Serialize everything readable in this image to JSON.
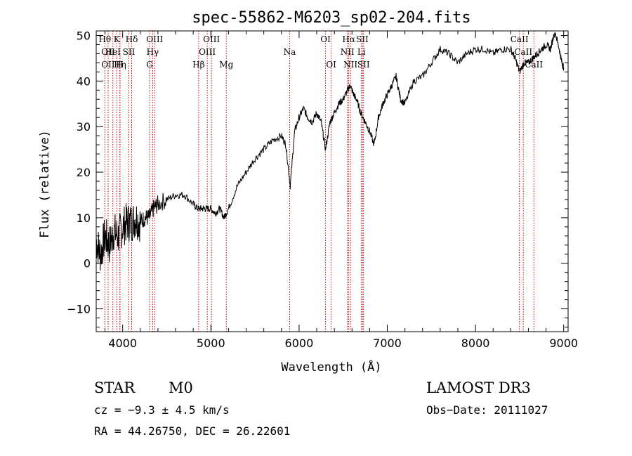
{
  "chart_data": {
    "type": "line",
    "title": "spec-55862-M6203_sp02-204.fits",
    "xlabel": "Wavelength (Å)",
    "ylabel": "Flux (relative)",
    "xlim": [
      3700,
      9050
    ],
    "ylim": [
      -15,
      51
    ],
    "x_ticks": [
      "4000",
      "5000",
      "6000",
      "7000",
      "8000",
      "9000"
    ],
    "x_tick_values": [
      4000,
      5000,
      6000,
      7000,
      8000,
      9000
    ],
    "y_ticks": [
      "−10",
      "0",
      "10",
      "20",
      "30",
      "40",
      "50"
    ],
    "y_tick_values": [
      -10,
      0,
      10,
      20,
      30,
      40,
      50
    ],
    "grid": false,
    "series": [
      {
        "name": "flux",
        "x": [
          3700,
          3750,
          3800,
          3850,
          3900,
          3950,
          4000,
          4050,
          4100,
          4150,
          4200,
          4250,
          4300,
          4350,
          4400,
          4500,
          4600,
          4700,
          4800,
          4850,
          4900,
          4950,
          5000,
          5050,
          5100,
          5150,
          5200,
          5300,
          5400,
          5500,
          5600,
          5700,
          5800,
          5850,
          5900,
          5950,
          6000,
          6050,
          6100,
          6150,
          6200,
          6250,
          6300,
          6350,
          6400,
          6450,
          6500,
          6550,
          6580,
          6620,
          6650,
          6700,
          6750,
          6800,
          6850,
          6900,
          6950,
          7000,
          7050,
          7100,
          7150,
          7200,
          7300,
          7400,
          7500,
          7600,
          7700,
          7800,
          7900,
          8000,
          8100,
          8200,
          8300,
          8400,
          8450,
          8500,
          8550,
          8600,
          8650,
          8700,
          8750,
          8800,
          8850,
          8900,
          8950,
          8980,
          9000
        ],
        "values": [
          5,
          2,
          6,
          4,
          7,
          6,
          8,
          9,
          9,
          10,
          9,
          10,
          10,
          12,
          13,
          14,
          15,
          15,
          13,
          12,
          12,
          12,
          12,
          11,
          12,
          10,
          12,
          17,
          20,
          23,
          25,
          27,
          28,
          26,
          17,
          29,
          32,
          34,
          32,
          31,
          33,
          31,
          25,
          31,
          33,
          35,
          36,
          38,
          39,
          37,
          36,
          33,
          31,
          29,
          26,
          32,
          35,
          37,
          39,
          41,
          36,
          35,
          40,
          41,
          44,
          47,
          46,
          44,
          46,
          47,
          47,
          46,
          47,
          47,
          45,
          42,
          44,
          44,
          45,
          46,
          47,
          48,
          47,
          51,
          47,
          44,
          43
        ]
      }
    ],
    "spectral_lines": [
      {
        "wavelength": 3798,
        "label": "Hθ",
        "row": 1
      },
      {
        "wavelength": 3835,
        "label": "OII",
        "row": 2
      },
      {
        "wavelength": 3835,
        "label": "OII",
        "row": 3
      },
      {
        "wavelength": 3889,
        "label": "HeI",
        "row": 2
      },
      {
        "wavelength": 3933,
        "label": "K",
        "row": 1
      },
      {
        "wavelength": 3970,
        "label": "Hη",
        "row": 3
      },
      {
        "wavelength": 4070,
        "label": "SII",
        "row": 2
      },
      {
        "wavelength": 3968,
        "label": "H",
        "row": 3
      },
      {
        "wavelength": 4102,
        "label": "Hδ",
        "row": 1
      },
      {
        "wavelength": 4340,
        "label": "Hγ",
        "row": 2
      },
      {
        "wavelength": 4363,
        "label": "OIII",
        "row": 1
      },
      {
        "wavelength": 4305,
        "label": "G",
        "row": 3
      },
      {
        "wavelength": 4861,
        "label": "Hβ",
        "row": 3
      },
      {
        "wavelength": 4959,
        "label": "OIII",
        "row": 2
      },
      {
        "wavelength": 5007,
        "label": "OIII",
        "row": 1
      },
      {
        "wavelength": 5175,
        "label": "Mg",
        "row": 3
      },
      {
        "wavelength": 5893,
        "label": "Na",
        "row": 2
      },
      {
        "wavelength": 6300,
        "label": "OI",
        "row": 1
      },
      {
        "wavelength": 6364,
        "label": "OI",
        "row": 3
      },
      {
        "wavelength": 6548,
        "label": "NII",
        "row": 2
      },
      {
        "wavelength": 6563,
        "label": "Hα",
        "row": 1
      },
      {
        "wavelength": 6583,
        "label": "NII",
        "row": 3
      },
      {
        "wavelength": 6708,
        "label": "Li",
        "row": 2
      },
      {
        "wavelength": 6717,
        "label": "SII",
        "row": 1
      },
      {
        "wavelength": 6731,
        "label": "SII",
        "row": 3
      },
      {
        "wavelength": 8498,
        "label": "CaII",
        "row": 1
      },
      {
        "wavelength": 8542,
        "label": "CaII",
        "row": 2
      },
      {
        "wavelength": 8662,
        "label": "CaII",
        "row": 3
      }
    ]
  },
  "info": {
    "object_type": "STAR",
    "subclass": "M0",
    "survey": "LAMOST DR3",
    "redshift": "cz = −9.3 ± 4.5 km/s",
    "obs_date": "Obs−Date: 20111027",
    "coords": "RA =  44.26750, DEC =  26.22601"
  },
  "colors": {
    "spectrum": "#000000",
    "line_markers": "#cc0000",
    "axes": "#000000"
  }
}
